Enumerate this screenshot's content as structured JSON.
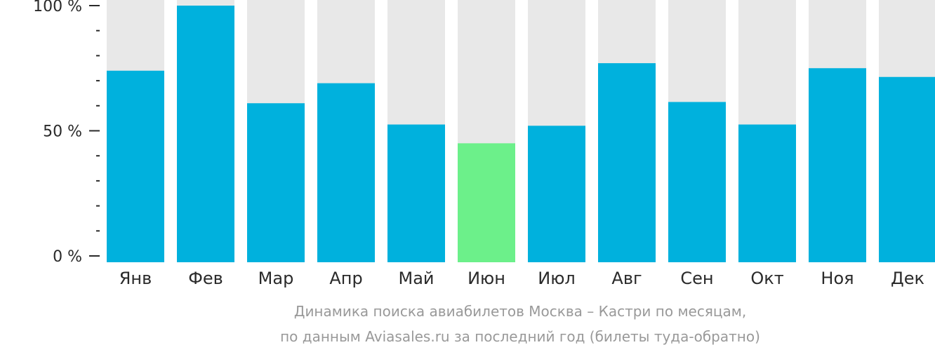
{
  "chart_data": {
    "type": "bar",
    "categories": [
      "Янв",
      "Фев",
      "Мар",
      "Апр",
      "Май",
      "Июн",
      "Июл",
      "Авг",
      "Сен",
      "Окт",
      "Ноя",
      "Дек"
    ],
    "values": [
      74,
      100,
      61,
      69,
      52.5,
      45,
      52,
      77,
      61.5,
      52.5,
      75,
      71.5
    ],
    "highlight_index": 5,
    "ylim": [
      0,
      100
    ],
    "y_ticks": [
      {
        "value": 100,
        "label": "100 %"
      },
      {
        "value": 50,
        "label": "50 %"
      },
      {
        "value": 0,
        "label": "0 %"
      }
    ],
    "y_minor_step": 10,
    "xlabel": "",
    "ylabel": "",
    "caption_lines": [
      "Динамика поиска авиабилетов Москва – Кастри по месяцам,",
      "по данным Aviasales.ru за последний год (билеты туда-обратно)"
    ],
    "colors": {
      "bar": "#00b1dd",
      "highlight": "#6cf08a",
      "background_bar": "#e8e8e8",
      "axis": "#2a2a2a",
      "caption": "#999999"
    }
  }
}
